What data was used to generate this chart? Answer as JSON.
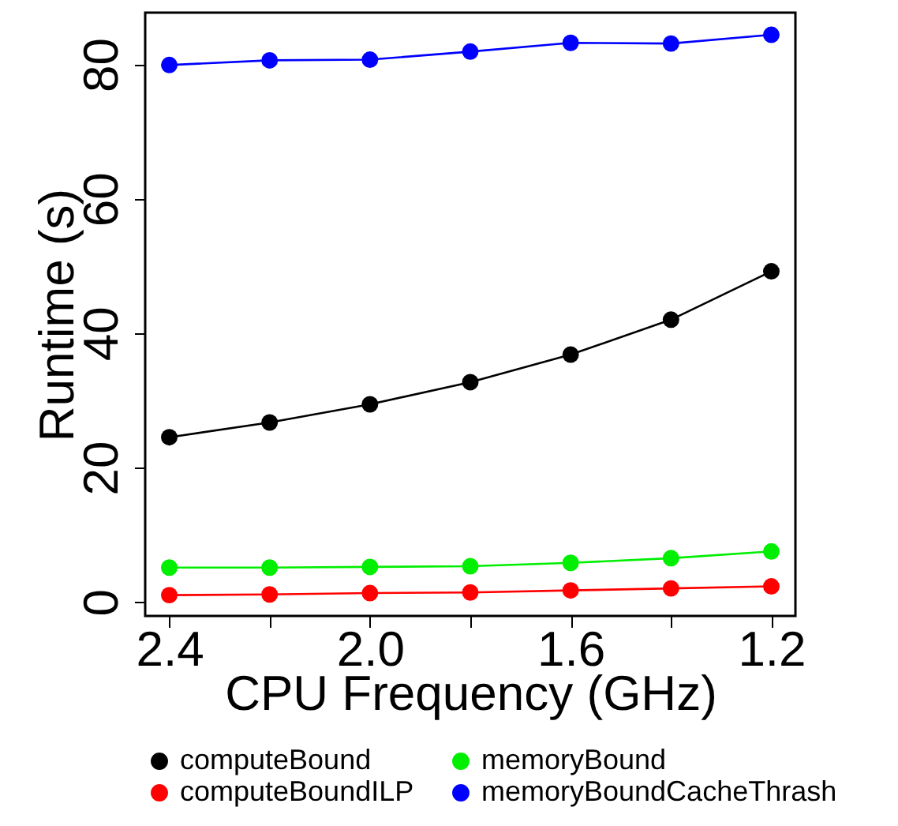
{
  "chart_data": {
    "type": "line",
    "xlabel": "CPU Frequency (GHz)",
    "ylabel": "Runtime (s)",
    "x": [
      2.4,
      2.2,
      2.0,
      1.8,
      1.6,
      1.4,
      1.2
    ],
    "xlim": [
      2.448,
      1.152
    ],
    "ylim": [
      -2.1,
      87.7
    ],
    "xticks": [
      2.4,
      {
        "value": 2.2,
        "label": null
      },
      {
        "value": 2,
        "label": "2.0"
      },
      {
        "value": 1.8,
        "label": null
      },
      1.6,
      {
        "value": 1.4,
        "label": null
      },
      1.2
    ],
    "yticks": [
      0,
      20,
      40,
      60,
      80
    ],
    "marker": "circle",
    "line_style": "solid",
    "grid": false,
    "legend": "bottom",
    "series": [
      {
        "name": "computeBound",
        "color": "#000000",
        "values": [
          24.5,
          26.7,
          29.4,
          32.7,
          36.8,
          42.0,
          49.2
        ]
      },
      {
        "name": "computeBoundILP",
        "color": "#ff0000",
        "values": [
          1.0,
          1.1,
          1.3,
          1.4,
          1.7,
          2.0,
          2.3
        ]
      },
      {
        "name": "memoryBound",
        "color": "#00ee00",
        "values": [
          5.1,
          5.1,
          5.2,
          5.3,
          5.8,
          6.5,
          7.5
        ]
      },
      {
        "name": "memoryBoundCacheThrash",
        "color": "#0000ff",
        "values": [
          79.9,
          80.6,
          80.7,
          81.9,
          83.2,
          83.1,
          84.4
        ]
      }
    ]
  }
}
